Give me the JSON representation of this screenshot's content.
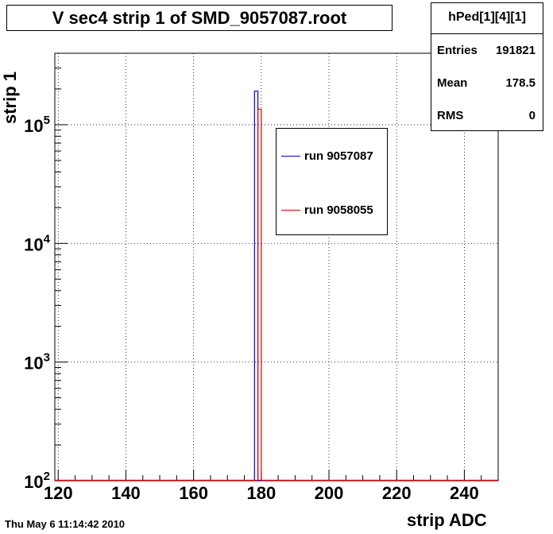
{
  "title": "V sec4 strip 1 of SMD_9057087.root",
  "stats": {
    "name": "hPed[1][4][1]",
    "rows": [
      {
        "label": "Entries",
        "value": "191821"
      },
      {
        "label": "Mean",
        "value": "178.5"
      },
      {
        "label": "RMS",
        "value": "0"
      }
    ]
  },
  "legend": {
    "entries": [
      {
        "label": "run 9057087",
        "color": "#0000cc"
      },
      {
        "label": "run 9058055",
        "color": "#dd0000"
      }
    ]
  },
  "footer_date": "Thu May  6 11:14:42 2010",
  "chart_data": {
    "type": "bar",
    "xlabel": "strip ADC",
    "ylabel": "strip 1",
    "xlim": [
      119,
      250
    ],
    "ylim": [
      100,
      400000
    ],
    "yscale": "log",
    "grid": true,
    "xticks": [
      120,
      140,
      160,
      180,
      200,
      220,
      240
    ],
    "yticks": [
      {
        "value": 100,
        "base": "10",
        "exp": "2"
      },
      {
        "value": 1000,
        "base": "10",
        "exp": "3"
      },
      {
        "value": 10000,
        "base": "10",
        "exp": "4"
      },
      {
        "value": 100000,
        "base": "10",
        "exp": "5"
      }
    ],
    "series": [
      {
        "name": "run 9057087",
        "color": "#0000cc",
        "bins": [
          {
            "x0": 178,
            "x1": 179,
            "y": 191821
          }
        ]
      },
      {
        "name": "run 9058055",
        "color": "#dd0000",
        "bins": [
          {
            "x0": 179,
            "x1": 180,
            "y": 135000
          }
        ]
      }
    ]
  }
}
